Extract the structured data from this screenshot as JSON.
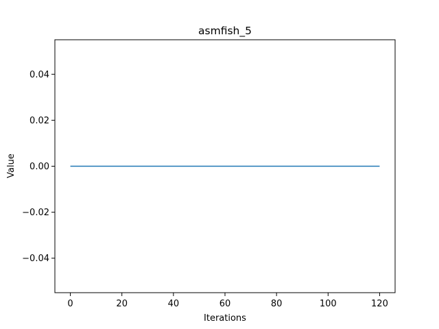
{
  "chart_data": {
    "type": "line",
    "title": "asmfish_5",
    "xlabel": "Iterations",
    "ylabel": "Value",
    "xlim": [
      -6,
      126
    ],
    "ylim": [
      -0.055,
      0.055
    ],
    "xticks": [
      0,
      20,
      40,
      60,
      80,
      100,
      120
    ],
    "xtick_labels": [
      "0",
      "20",
      "40",
      "60",
      "80",
      "100",
      "120"
    ],
    "yticks": [
      -0.04,
      -0.02,
      0.0,
      0.02,
      0.04
    ],
    "ytick_labels": [
      "−0.04",
      "−0.02",
      "0.00",
      "0.02",
      "0.04"
    ],
    "grid": false,
    "series": [
      {
        "name": "asmfish_5",
        "color": "#1f77b4",
        "x": [
          0,
          120
        ],
        "y": [
          0,
          0
        ]
      }
    ]
  }
}
